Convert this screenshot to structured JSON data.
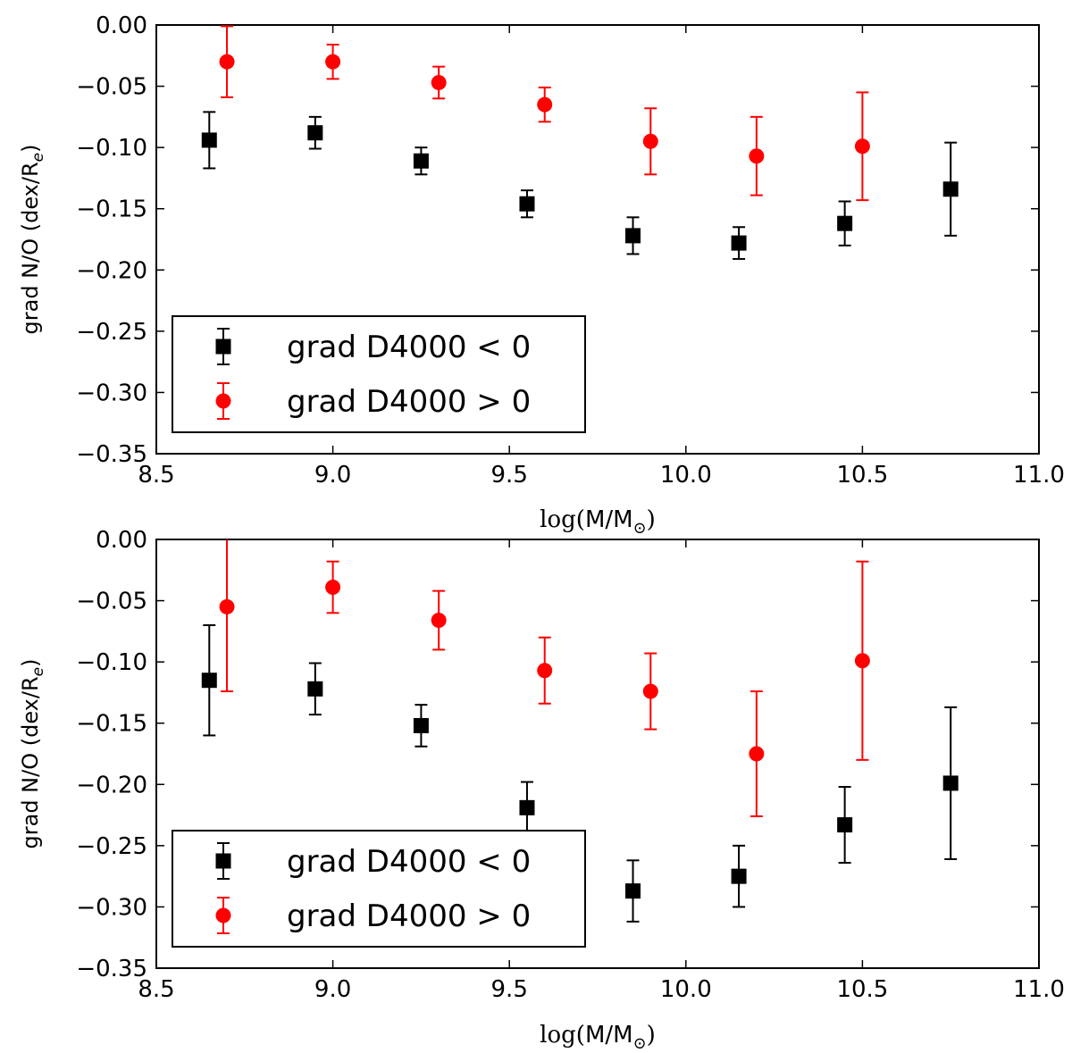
{
  "chart_data": [
    {
      "type": "scatter",
      "panel": "top",
      "xlabel": {
        "prefix": "log",
        "quantity": "M/M",
        "subscript": "⊙"
      },
      "ylabel": {
        "text": "grad N/O (dex/R",
        "subscript": "e",
        "suffix": ")"
      },
      "xlim": [
        8.5,
        11.0
      ],
      "ylim": [
        -0.35,
        0.0
      ],
      "xticks": [
        "8.5",
        "9.0",
        "9.5",
        "10.0",
        "10.5",
        "11.0"
      ],
      "yticks": [
        "0.00",
        "−0.05",
        "−0.10",
        "−0.15",
        "−0.20",
        "−0.25",
        "−0.30",
        "−0.35"
      ],
      "legend_position": "lower-left",
      "series": [
        {
          "name": "grad D4000 < 0",
          "marker": "square",
          "color": "#000000",
          "x": [
            8.65,
            8.95,
            9.25,
            9.55,
            9.85,
            10.15,
            10.45,
            10.75
          ],
          "y": [
            -0.094,
            -0.088,
            -0.111,
            -0.146,
            -0.172,
            -0.178,
            -0.162,
            -0.134
          ],
          "err_low": [
            0.023,
            0.013,
            0.011,
            0.011,
            0.015,
            0.013,
            0.018,
            0.038
          ],
          "err_high": [
            0.023,
            0.013,
            0.011,
            0.011,
            0.015,
            0.013,
            0.018,
            0.038
          ]
        },
        {
          "name": "grad D4000 > 0",
          "marker": "circle",
          "color": "#ff0000",
          "x": [
            8.7,
            9.0,
            9.3,
            9.6,
            9.9,
            10.2,
            10.5
          ],
          "y": [
            -0.03,
            -0.03,
            -0.047,
            -0.065,
            -0.095,
            -0.107,
            -0.099
          ],
          "err_low": [
            0.029,
            0.014,
            0.013,
            0.014,
            0.027,
            0.032,
            0.044
          ],
          "err_high": [
            0.029,
            0.014,
            0.013,
            0.014,
            0.027,
            0.032,
            0.044
          ]
        }
      ]
    },
    {
      "type": "scatter",
      "panel": "bottom",
      "xlabel": {
        "prefix": "log",
        "quantity": "M/M",
        "subscript": "⊙"
      },
      "ylabel": {
        "text": "grad N/O (dex/R",
        "subscript": "e",
        "suffix": ")"
      },
      "xlim": [
        8.5,
        11.0
      ],
      "ylim": [
        -0.35,
        0.0
      ],
      "xticks": [
        "8.5",
        "9.0",
        "9.5",
        "10.0",
        "10.5",
        "11.0"
      ],
      "yticks": [
        "0.00",
        "−0.05",
        "−0.10",
        "−0.15",
        "−0.20",
        "−0.25",
        "−0.30",
        "−0.35"
      ],
      "legend_position": "lower-left",
      "series": [
        {
          "name": "grad D4000 < 0",
          "marker": "square",
          "color": "#000000",
          "x": [
            8.65,
            8.95,
            9.25,
            9.55,
            9.85,
            10.15,
            10.45,
            10.75
          ],
          "y": [
            -0.115,
            -0.122,
            -0.152,
            -0.219,
            -0.287,
            -0.275,
            -0.233,
            -0.199
          ],
          "err_low": [
            0.045,
            0.021,
            0.017,
            0.021,
            0.025,
            0.025,
            0.031,
            0.062
          ],
          "err_high": [
            0.045,
            0.021,
            0.017,
            0.021,
            0.025,
            0.025,
            0.031,
            0.062
          ]
        },
        {
          "name": "grad D4000 > 0",
          "marker": "circle",
          "color": "#ff0000",
          "x": [
            8.7,
            9.0,
            9.3,
            9.6,
            9.9,
            10.2,
            10.5
          ],
          "y": [
            -0.055,
            -0.039,
            -0.066,
            -0.107,
            -0.124,
            -0.175,
            -0.099
          ],
          "err_low": [
            0.069,
            0.021,
            0.024,
            0.027,
            0.031,
            0.051,
            0.081
          ],
          "err_high": [
            0.069,
            0.021,
            0.024,
            0.027,
            0.031,
            0.051,
            0.081
          ]
        }
      ]
    }
  ]
}
